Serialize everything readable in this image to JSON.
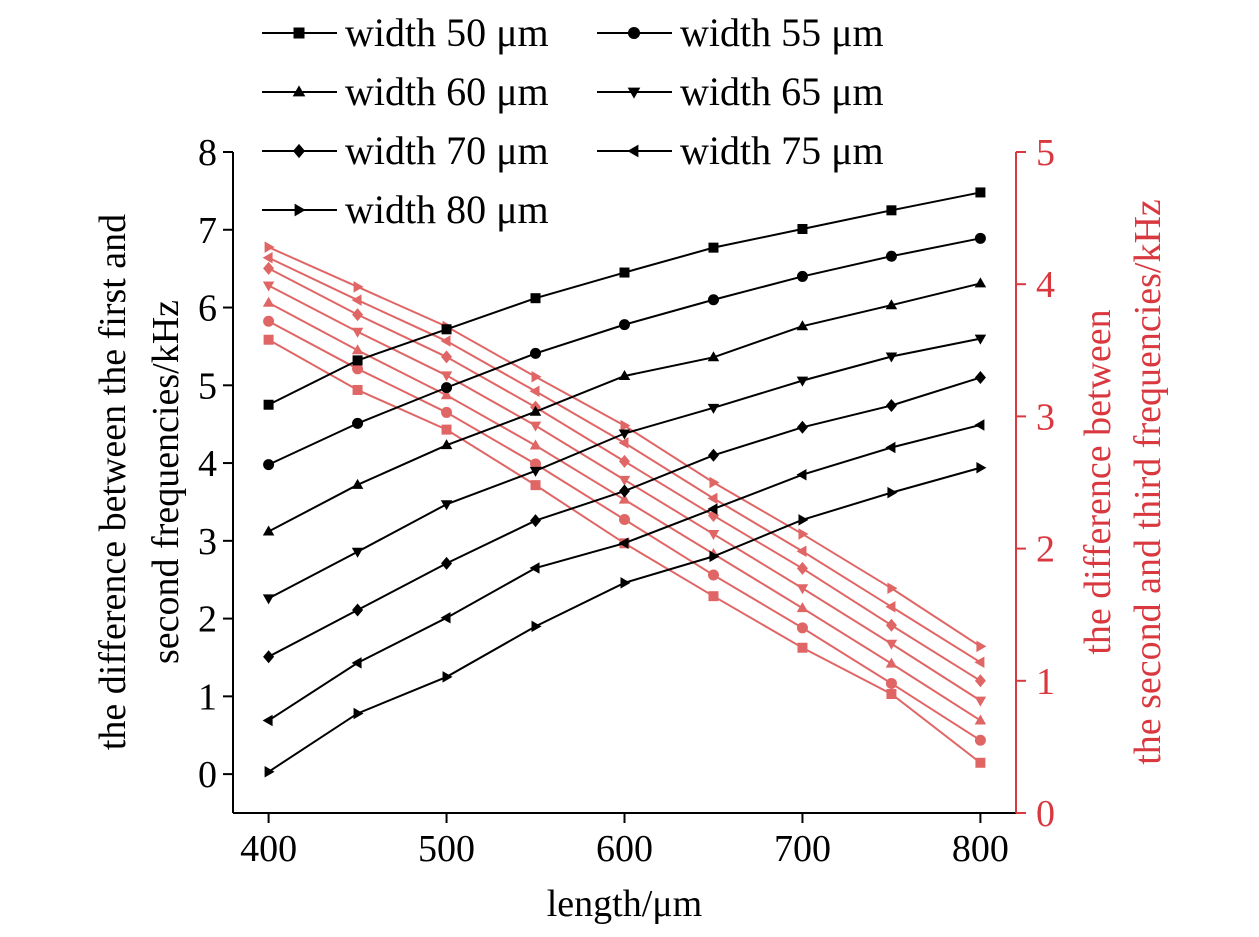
{
  "chart_data": {
    "type": "line",
    "xlabel": "length/μm",
    "ylabel_left": [
      "the difference between the first and",
      "second frequencies/kHz"
    ],
    "ylabel_right": [
      "the difference between",
      "the second and third frequencies/kHz"
    ],
    "x": [
      400,
      450,
      500,
      550,
      600,
      650,
      700,
      750,
      800
    ],
    "xlim": [
      380,
      820
    ],
    "xticks": [
      400,
      500,
      600,
      700,
      800
    ],
    "ylim_left": [
      -0.5,
      8
    ],
    "yticks_left": [
      0,
      1,
      2,
      3,
      4,
      5,
      6,
      7,
      8
    ],
    "ylim_right": [
      0,
      5
    ],
    "yticks_right": [
      0,
      1,
      2,
      3,
      4,
      5
    ],
    "grid": false,
    "legend_position": "top-left",
    "colors": {
      "left_axis": "#000000",
      "right_axis": "#d9383f",
      "right_series": "#e06666"
    },
    "series_left": [
      {
        "name": "width 50 μm",
        "marker": "square",
        "values": [
          4.75,
          5.32,
          5.72,
          6.12,
          6.45,
          6.77,
          7.01,
          7.25,
          7.48
        ]
      },
      {
        "name": "width 55 μm",
        "marker": "circle",
        "values": [
          3.98,
          4.51,
          4.97,
          5.41,
          5.78,
          6.1,
          6.4,
          6.66,
          6.89
        ]
      },
      {
        "name": "width 60 μm",
        "marker": "triangle-up",
        "values": [
          3.12,
          3.72,
          4.23,
          4.66,
          5.12,
          5.36,
          5.76,
          6.03,
          6.31
        ]
      },
      {
        "name": "width 65 μm",
        "marker": "triangle-down",
        "values": [
          2.26,
          2.86,
          3.47,
          3.9,
          4.38,
          4.71,
          5.06,
          5.37,
          5.6
        ]
      },
      {
        "name": "width 70 μm",
        "marker": "diamond",
        "values": [
          1.51,
          2.11,
          2.71,
          3.26,
          3.64,
          4.1,
          4.46,
          4.74,
          5.1
        ]
      },
      {
        "name": "width 75 μm",
        "marker": "triangle-left",
        "values": [
          0.69,
          1.43,
          2.01,
          2.65,
          2.97,
          3.41,
          3.85,
          4.2,
          4.49
        ]
      },
      {
        "name": "width 80 μm",
        "marker": "triangle-right",
        "values": [
          0.03,
          0.78,
          1.25,
          1.9,
          2.46,
          2.8,
          3.27,
          3.62,
          3.94
        ]
      }
    ],
    "series_right": [
      {
        "name": "width 50 μm",
        "marker": "square",
        "values": [
          3.58,
          3.2,
          2.9,
          2.48,
          2.04,
          1.64,
          1.25,
          0.9,
          0.38
        ]
      },
      {
        "name": "width 55 μm",
        "marker": "circle",
        "values": [
          3.72,
          3.36,
          3.03,
          2.64,
          2.22,
          1.8,
          1.4,
          0.98,
          0.55
        ]
      },
      {
        "name": "width 60 μm",
        "marker": "triangle-up",
        "values": [
          3.86,
          3.5,
          3.16,
          2.78,
          2.37,
          1.96,
          1.55,
          1.13,
          0.7
        ]
      },
      {
        "name": "width 65 μm",
        "marker": "triangle-down",
        "values": [
          3.99,
          3.64,
          3.31,
          2.93,
          2.52,
          2.11,
          1.7,
          1.28,
          0.85
        ]
      },
      {
        "name": "width 70 μm",
        "marker": "diamond",
        "values": [
          4.12,
          3.77,
          3.45,
          3.07,
          2.66,
          2.25,
          1.85,
          1.42,
          1.0
        ]
      },
      {
        "name": "width 75 μm",
        "marker": "triangle-left",
        "values": [
          4.2,
          3.88,
          3.57,
          3.19,
          2.8,
          2.38,
          1.98,
          1.56,
          1.14
        ]
      },
      {
        "name": "width 80 μm",
        "marker": "triangle-right",
        "values": [
          4.28,
          3.98,
          3.68,
          3.3,
          2.93,
          2.5,
          2.11,
          1.7,
          1.26
        ]
      }
    ]
  }
}
